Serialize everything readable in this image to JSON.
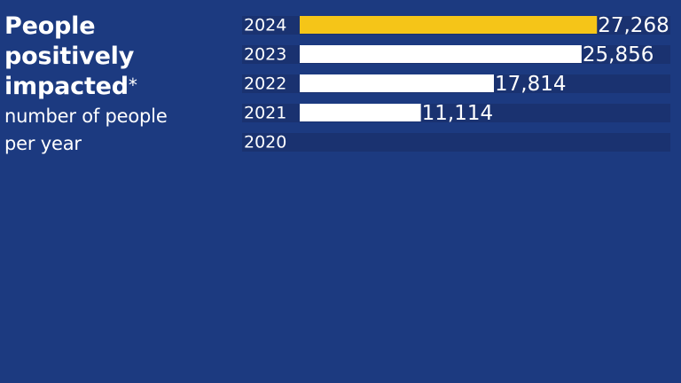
{
  "headline": {
    "title_lines": [
      "People",
      "positively",
      "impacted"
    ],
    "asterisk": "*",
    "subtitle_lines": [
      "number of people",
      "per year"
    ]
  },
  "colors": {
    "background": "#1c3a80",
    "track": "#1a3270",
    "bar_default": "#ffffff",
    "bar_highlight": "#f5c518",
    "text": "#ffffff"
  },
  "chart_data": {
    "type": "bar",
    "orientation": "horizontal",
    "categories": [
      "2024",
      "2023",
      "2022",
      "2021",
      "2020"
    ],
    "values": [
      27268,
      25856,
      17814,
      11114,
      null
    ],
    "value_labels": [
      "27,268",
      "25,856",
      "17,814",
      "11,114",
      ""
    ],
    "highlight_category": "2024",
    "xlim": [
      0,
      34000
    ],
    "grid": false,
    "legend": "none"
  }
}
